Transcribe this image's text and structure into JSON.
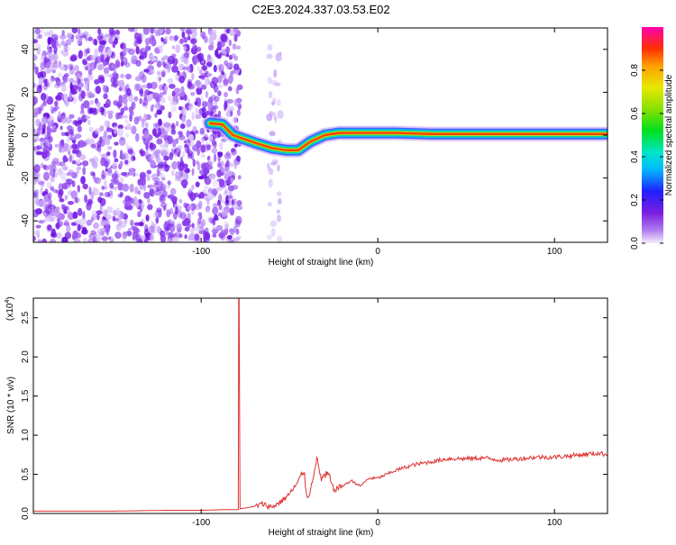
{
  "title": "C2E3.2024.337.03.53.E02",
  "chart_data": [
    {
      "type": "heatmap",
      "xlabel": "Height of straight line (km)",
      "ylabel": "Frequency (Hz)",
      "xlim": [
        -195,
        130
      ],
      "ylim": [
        -50,
        50
      ],
      "x_ticks": [
        -100,
        0,
        100
      ],
      "y_ticks": [
        -40,
        -20,
        0,
        20,
        40
      ],
      "colorbar": {
        "label": "Normalized spectral amplitude",
        "ticks": [
          "0.0",
          "0.2",
          "0.4",
          "0.6",
          "0.8"
        ],
        "range": [
          0,
          1
        ]
      },
      "ridge": [
        {
          "x": -95,
          "y": 5.5
        },
        {
          "x": -88,
          "y": 5
        },
        {
          "x": -82,
          "y": 0
        },
        {
          "x": -75,
          "y": -2
        },
        {
          "x": -68,
          "y": -4
        },
        {
          "x": -60,
          "y": -6
        },
        {
          "x": -52,
          "y": -7
        },
        {
          "x": -45,
          "y": -7
        },
        {
          "x": -38,
          "y": -3
        },
        {
          "x": -30,
          "y": 0
        },
        {
          "x": -22,
          "y": 1
        },
        {
          "x": -10,
          "y": 1
        },
        {
          "x": 0,
          "y": 1
        },
        {
          "x": 10,
          "y": 1
        },
        {
          "x": 30,
          "y": 0.5
        },
        {
          "x": 60,
          "y": 0.5
        },
        {
          "x": 90,
          "y": 0.5
        },
        {
          "x": 130,
          "y": 0.5
        }
      ]
    },
    {
      "type": "line",
      "xlabel": "Height of straight line (km)",
      "ylabel": "SNR (10 * v/v)",
      "y_multiplier": "(x10",
      "y_multiplier_exp": "4",
      "y_multiplier_close": ")",
      "xlim": [
        -195,
        130
      ],
      "ylim": [
        0,
        2.75
      ],
      "x_ticks": [
        -100,
        0,
        100
      ],
      "y_ticks": [
        "0.0",
        "0.5",
        "1.0",
        "1.5",
        "2.0",
        "2.5"
      ],
      "series": [
        {
          "color": "#dd3333",
          "x": [
            -195,
            -150,
            -120,
            -100,
            -85,
            -79,
            -78.8,
            -78.5,
            -78,
            -72,
            -65,
            -60,
            -55,
            -50,
            -45,
            -42,
            -40,
            -38,
            -35,
            -32,
            -28,
            -25,
            -20,
            -15,
            -10,
            -5,
            0,
            5,
            10,
            20,
            30,
            40,
            50,
            60,
            70,
            80,
            90,
            100,
            110,
            120,
            125,
            130
          ],
          "y": [
            0.03,
            0.03,
            0.04,
            0.04,
            0.05,
            0.05,
            2.75,
            2.75,
            0.06,
            0.08,
            0.12,
            0.08,
            0.15,
            0.25,
            0.4,
            0.55,
            0.2,
            0.3,
            0.7,
            0.45,
            0.5,
            0.3,
            0.35,
            0.42,
            0.35,
            0.45,
            0.45,
            0.5,
            0.55,
            0.62,
            0.66,
            0.7,
            0.7,
            0.71,
            0.68,
            0.7,
            0.72,
            0.72,
            0.74,
            0.76,
            0.77,
            0.75
          ]
        }
      ]
    }
  ]
}
